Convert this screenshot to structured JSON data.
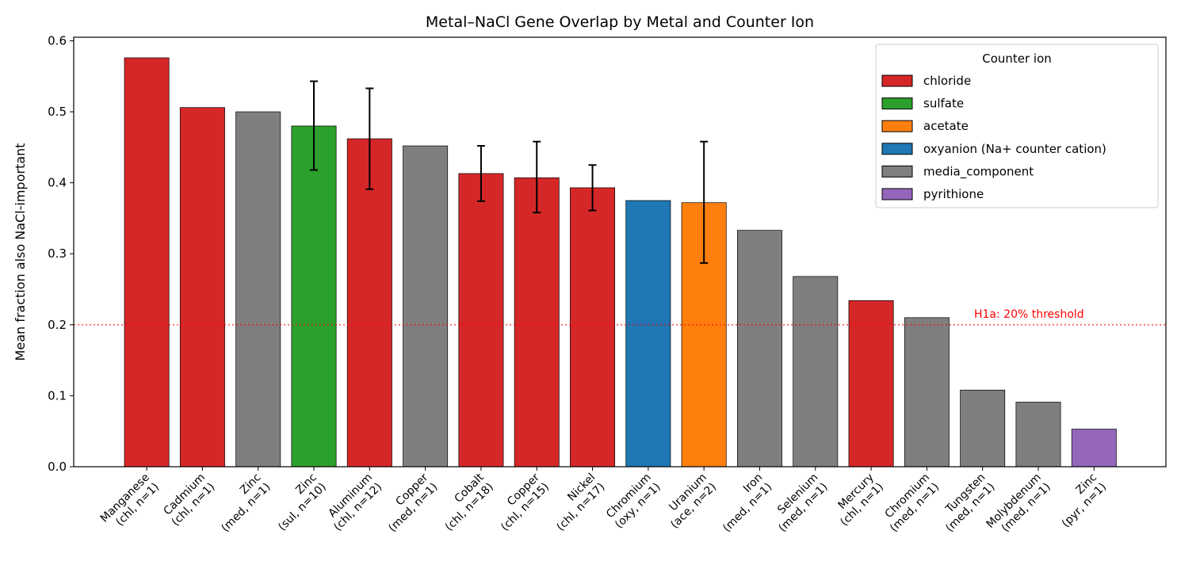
{
  "chart_data": {
    "type": "bar",
    "title": "Metal–NaCl Gene Overlap by Metal and Counter Ion",
    "xlabel": "",
    "ylabel": "Mean fraction also NaCl-important",
    "ylim": [
      0,
      0.605
    ],
    "yticks": [
      "0.0",
      "0.1",
      "0.2",
      "0.3",
      "0.4",
      "0.5",
      "0.6"
    ],
    "grid": false,
    "categories": [
      {
        "name": "Manganese",
        "sub": "(chl, n=1)"
      },
      {
        "name": "Cadmium",
        "sub": "(chl, n=1)"
      },
      {
        "name": "Zinc",
        "sub": "(med, n=1)"
      },
      {
        "name": "Zinc",
        "sub": "(sul, n=10)"
      },
      {
        "name": "Aluminum",
        "sub": "(chl, n=12)"
      },
      {
        "name": "Copper",
        "sub": "(med, n=1)"
      },
      {
        "name": "Cobalt",
        "sub": "(chl, n=18)"
      },
      {
        "name": "Copper",
        "sub": "(chl, n=15)"
      },
      {
        "name": "Nickel",
        "sub": "(chl, n=17)"
      },
      {
        "name": "Chromium",
        "sub": "(oxy, n=1)"
      },
      {
        "name": "Uranium",
        "sub": "(ace, n=2)"
      },
      {
        "name": "Iron",
        "sub": "(med, n=1)"
      },
      {
        "name": "Selenium",
        "sub": "(med, n=1)"
      },
      {
        "name": "Mercury",
        "sub": "(chl, n=1)"
      },
      {
        "name": "Chromium",
        "sub": "(med, n=1)"
      },
      {
        "name": "Tungsten",
        "sub": "(med, n=1)"
      },
      {
        "name": "Molybdenum",
        "sub": "(med, n=1)"
      },
      {
        "name": "Zinc",
        "sub": "(pyr, n=1)"
      }
    ],
    "values": [
      0.576,
      0.506,
      0.5,
      0.48,
      0.462,
      0.452,
      0.413,
      0.407,
      0.393,
      0.375,
      0.372,
      0.333,
      0.268,
      0.234,
      0.21,
      0.108,
      0.091,
      0.053
    ],
    "counter_ion": [
      "chloride",
      "chloride",
      "media_component",
      "sulfate",
      "chloride",
      "media_component",
      "chloride",
      "chloride",
      "chloride",
      "oxyanion (Na+ counter cation)",
      "acetate",
      "media_component",
      "media_component",
      "chloride",
      "media_component",
      "media_component",
      "media_component",
      "pyrithione"
    ],
    "error_bars": [
      null,
      null,
      null,
      [
        0.418,
        0.543
      ],
      [
        0.391,
        0.533
      ],
      null,
      [
        0.374,
        0.452
      ],
      [
        0.358,
        0.458
      ],
      [
        0.361,
        0.425
      ],
      null,
      [
        0.287,
        0.458
      ],
      null,
      null,
      null,
      null,
      null,
      null,
      null
    ],
    "threshold": {
      "value": 0.2,
      "label": "H1a: 20% threshold",
      "color": "#ff0000"
    },
    "legend": {
      "title": "Counter ion",
      "placement": "top-right",
      "entries": [
        {
          "label": "chloride",
          "color": "#d62728"
        },
        {
          "label": "sulfate",
          "color": "#2ca02c"
        },
        {
          "label": "acetate",
          "color": "#ff7f0e"
        },
        {
          "label": "oxyanion (Na+ counter cation)",
          "color": "#1f77b4"
        },
        {
          "label": "media_component",
          "color": "#7f7f7f"
        },
        {
          "label": "pyrithione",
          "color": "#9467bd"
        }
      ]
    }
  }
}
